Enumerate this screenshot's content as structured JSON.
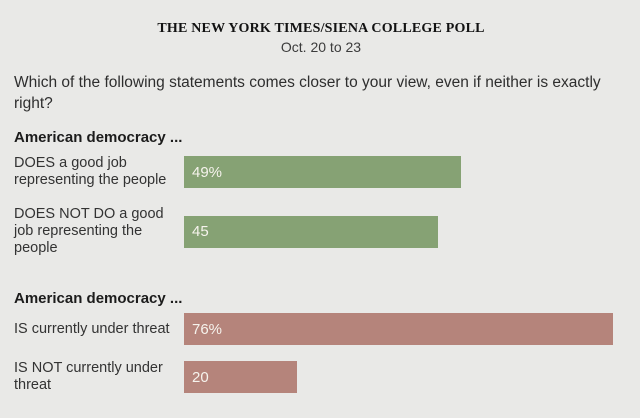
{
  "header": {
    "title": "THE NEW YORK TIMES/SIENA COLLEGE POLL",
    "date": "Oct. 20 to 23"
  },
  "question": "Which of the following statements comes closer to your view, even if neither is exactly right?",
  "colors": {
    "background": "#e9e9e7",
    "green_bar": "#86a274",
    "rose_bar": "#b5847b",
    "value_text": "#f6f3ed",
    "title_text": "#121212",
    "body_text": "#333333"
  },
  "chart_data": {
    "type": "bar",
    "orientation": "horizontal",
    "value_axis_max_approx": 79,
    "groups": [
      {
        "heading": "American democracy ...",
        "bar_color": "#86a274",
        "bars": [
          {
            "label": "DOES a good job representing the people",
            "value": 49,
            "value_label": "49%"
          },
          {
            "label": "DOES NOT DO a good job representing the people",
            "value": 45,
            "value_label": "45"
          }
        ]
      },
      {
        "heading": "American democracy ...",
        "bar_color": "#b5847b",
        "bars": [
          {
            "label": "IS currently under threat",
            "value": 76,
            "value_label": "76%"
          },
          {
            "label": "IS NOT currently under threat",
            "value": 20,
            "value_label": "20"
          }
        ]
      }
    ]
  }
}
